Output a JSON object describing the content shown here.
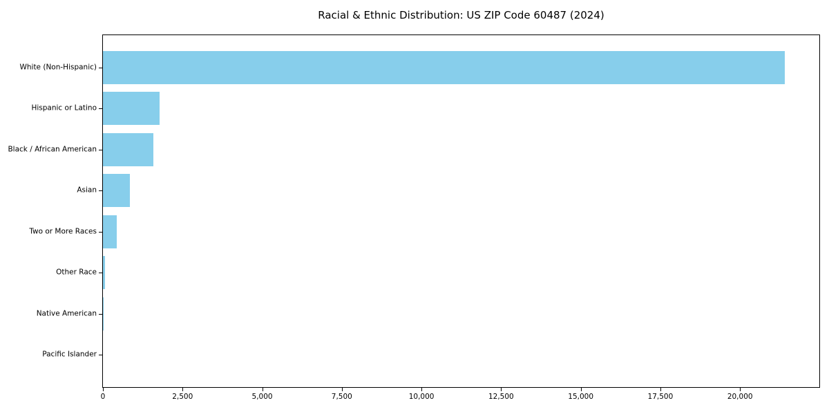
{
  "figure": {
    "background_color": "#ffffff",
    "frame_color": "#000000"
  },
  "chart_data": {
    "type": "bar",
    "orientation": "horizontal",
    "title": "Racial & Ethnic Distribution: US ZIP Code 60487 (2024)",
    "xlabel": "",
    "ylabel": "",
    "categories": [
      "White (Non-Hispanic)",
      "Hispanic or Latino",
      "Black / African American",
      "Asian",
      "Two or More Races",
      "Other Race",
      "Native American",
      "Pacific Islander"
    ],
    "values": [
      21400,
      1780,
      1580,
      840,
      430,
      75,
      20,
      0
    ],
    "bar_color": "#87CEEB",
    "xlim": [
      0,
      22490
    ],
    "x_ticks": [
      0,
      2500,
      5000,
      7500,
      10000,
      12500,
      15000,
      17500,
      20000
    ],
    "x_tick_labels": [
      "0",
      "2,500",
      "5,000",
      "7,500",
      "10,000",
      "12,500",
      "15,000",
      "17,500",
      "20,000"
    ],
    "grid": false,
    "legend": null
  }
}
